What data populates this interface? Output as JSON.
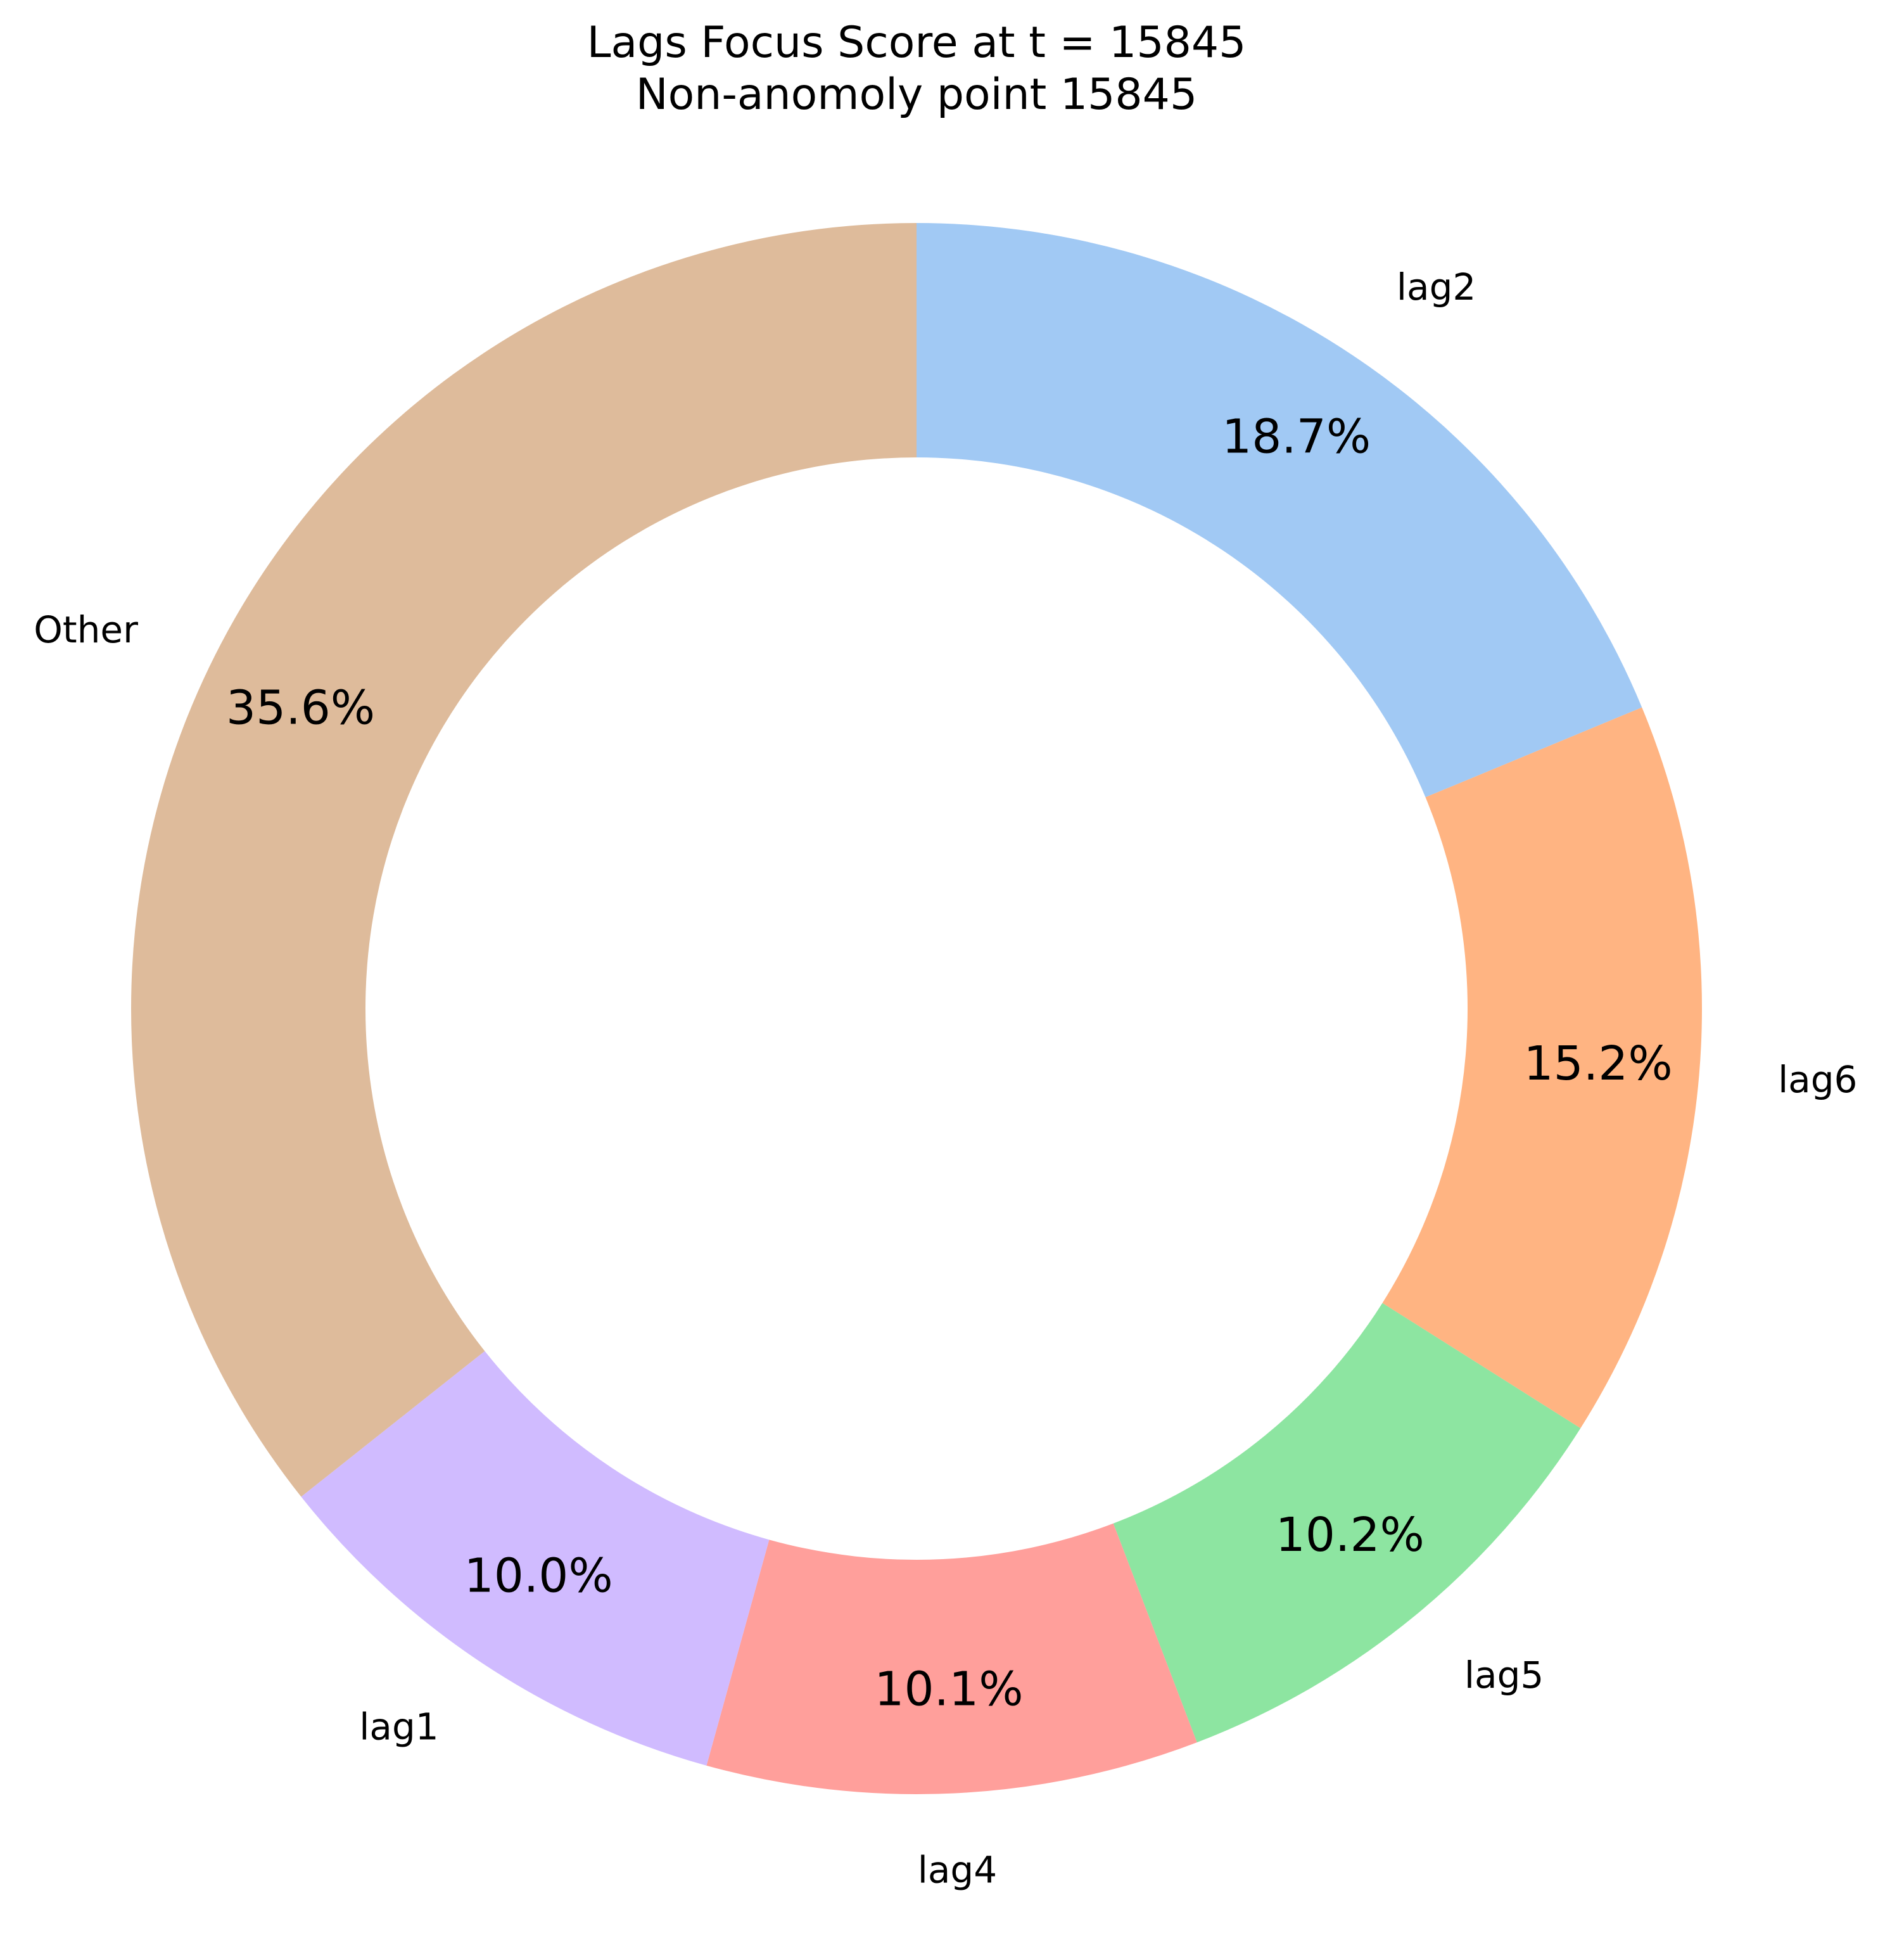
{
  "chart_data": {
    "type": "pie",
    "style": "donut",
    "title": "Lags Focus Score at t = 15845",
    "subtitle": "Non-anomoly point 15845",
    "start_angle_deg": 90,
    "direction": "clockwise",
    "slices": [
      {
        "label": "lag2",
        "value": 18.7,
        "pct_label": "18.7%",
        "color": "#a1c9f4"
      },
      {
        "label": "lag6",
        "value": 15.2,
        "pct_label": "15.2%",
        "color": "#ffb482"
      },
      {
        "label": "lag5",
        "value": 10.2,
        "pct_label": "10.2%",
        "color": "#8de5a1"
      },
      {
        "label": "lag4",
        "value": 10.1,
        "pct_label": "10.1%",
        "color": "#ff9f9b"
      },
      {
        "label": "lag1",
        "value": 10.0,
        "pct_label": "10.0%",
        "color": "#d0bbff"
      },
      {
        "label": "Other",
        "value": 35.6,
        "pct_label": "35.6%",
        "color": "#debb9b"
      }
    ]
  }
}
